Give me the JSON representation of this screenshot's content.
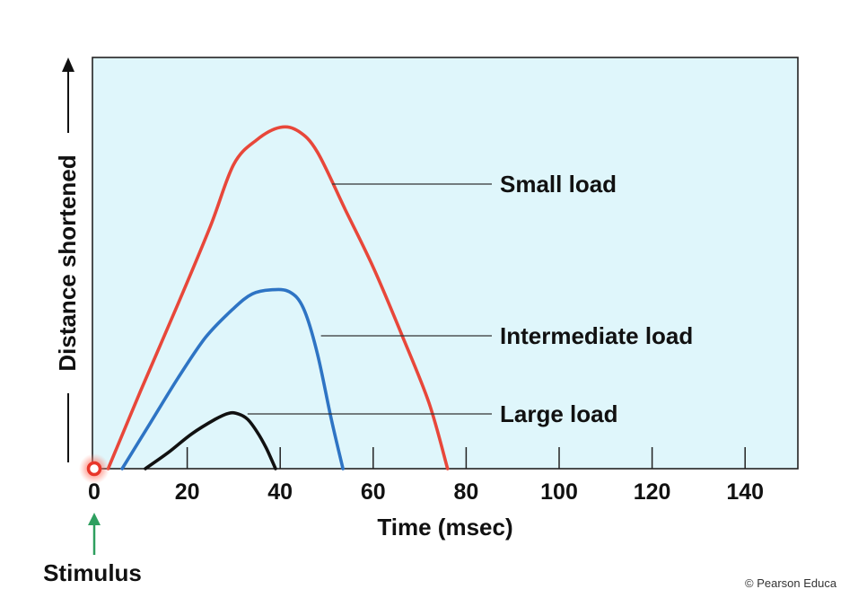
{
  "chart_data": {
    "type": "line",
    "title": "",
    "xlabel": "Time (msec)",
    "ylabel": "Distance shortened",
    "xlim": [
      0,
      150
    ],
    "ylim": [
      0,
      1
    ],
    "x_ticks": [
      0,
      20,
      40,
      60,
      80,
      100,
      120,
      140
    ],
    "tick_labels": [
      "0",
      "20",
      "40",
      "60",
      "80",
      "100",
      "120",
      "140"
    ],
    "grid": false,
    "background_color": "#dff6fb",
    "series": [
      {
        "name": "Small load",
        "color": "#e8473a",
        "x": [
          3,
          10,
          18,
          25,
          30,
          35,
          40,
          44,
          48,
          54,
          60,
          66,
          72,
          76
        ],
        "y": [
          0,
          0.19,
          0.4,
          0.59,
          0.74,
          0.8,
          0.83,
          0.82,
          0.77,
          0.63,
          0.49,
          0.33,
          0.16,
          0
        ]
      },
      {
        "name": "Intermediate load",
        "color": "#2e74c4",
        "x": [
          6,
          12,
          18,
          24,
          30,
          34,
          38,
          42,
          45,
          48,
          51,
          53.5
        ],
        "y": [
          0,
          0.11,
          0.22,
          0.32,
          0.39,
          0.425,
          0.435,
          0.43,
          0.39,
          0.28,
          0.12,
          0
        ]
      },
      {
        "name": "Large load",
        "color": "#111111",
        "x": [
          11,
          16,
          21,
          26,
          29,
          31,
          33,
          35,
          37,
          39
        ],
        "y": [
          0,
          0.04,
          0.085,
          0.12,
          0.135,
          0.133,
          0.12,
          0.09,
          0.05,
          0
        ]
      }
    ],
    "annotations": {
      "stimulus_label": "Stimulus",
      "stimulus_x": 0
    },
    "copyright": "© Pearson Educa"
  }
}
